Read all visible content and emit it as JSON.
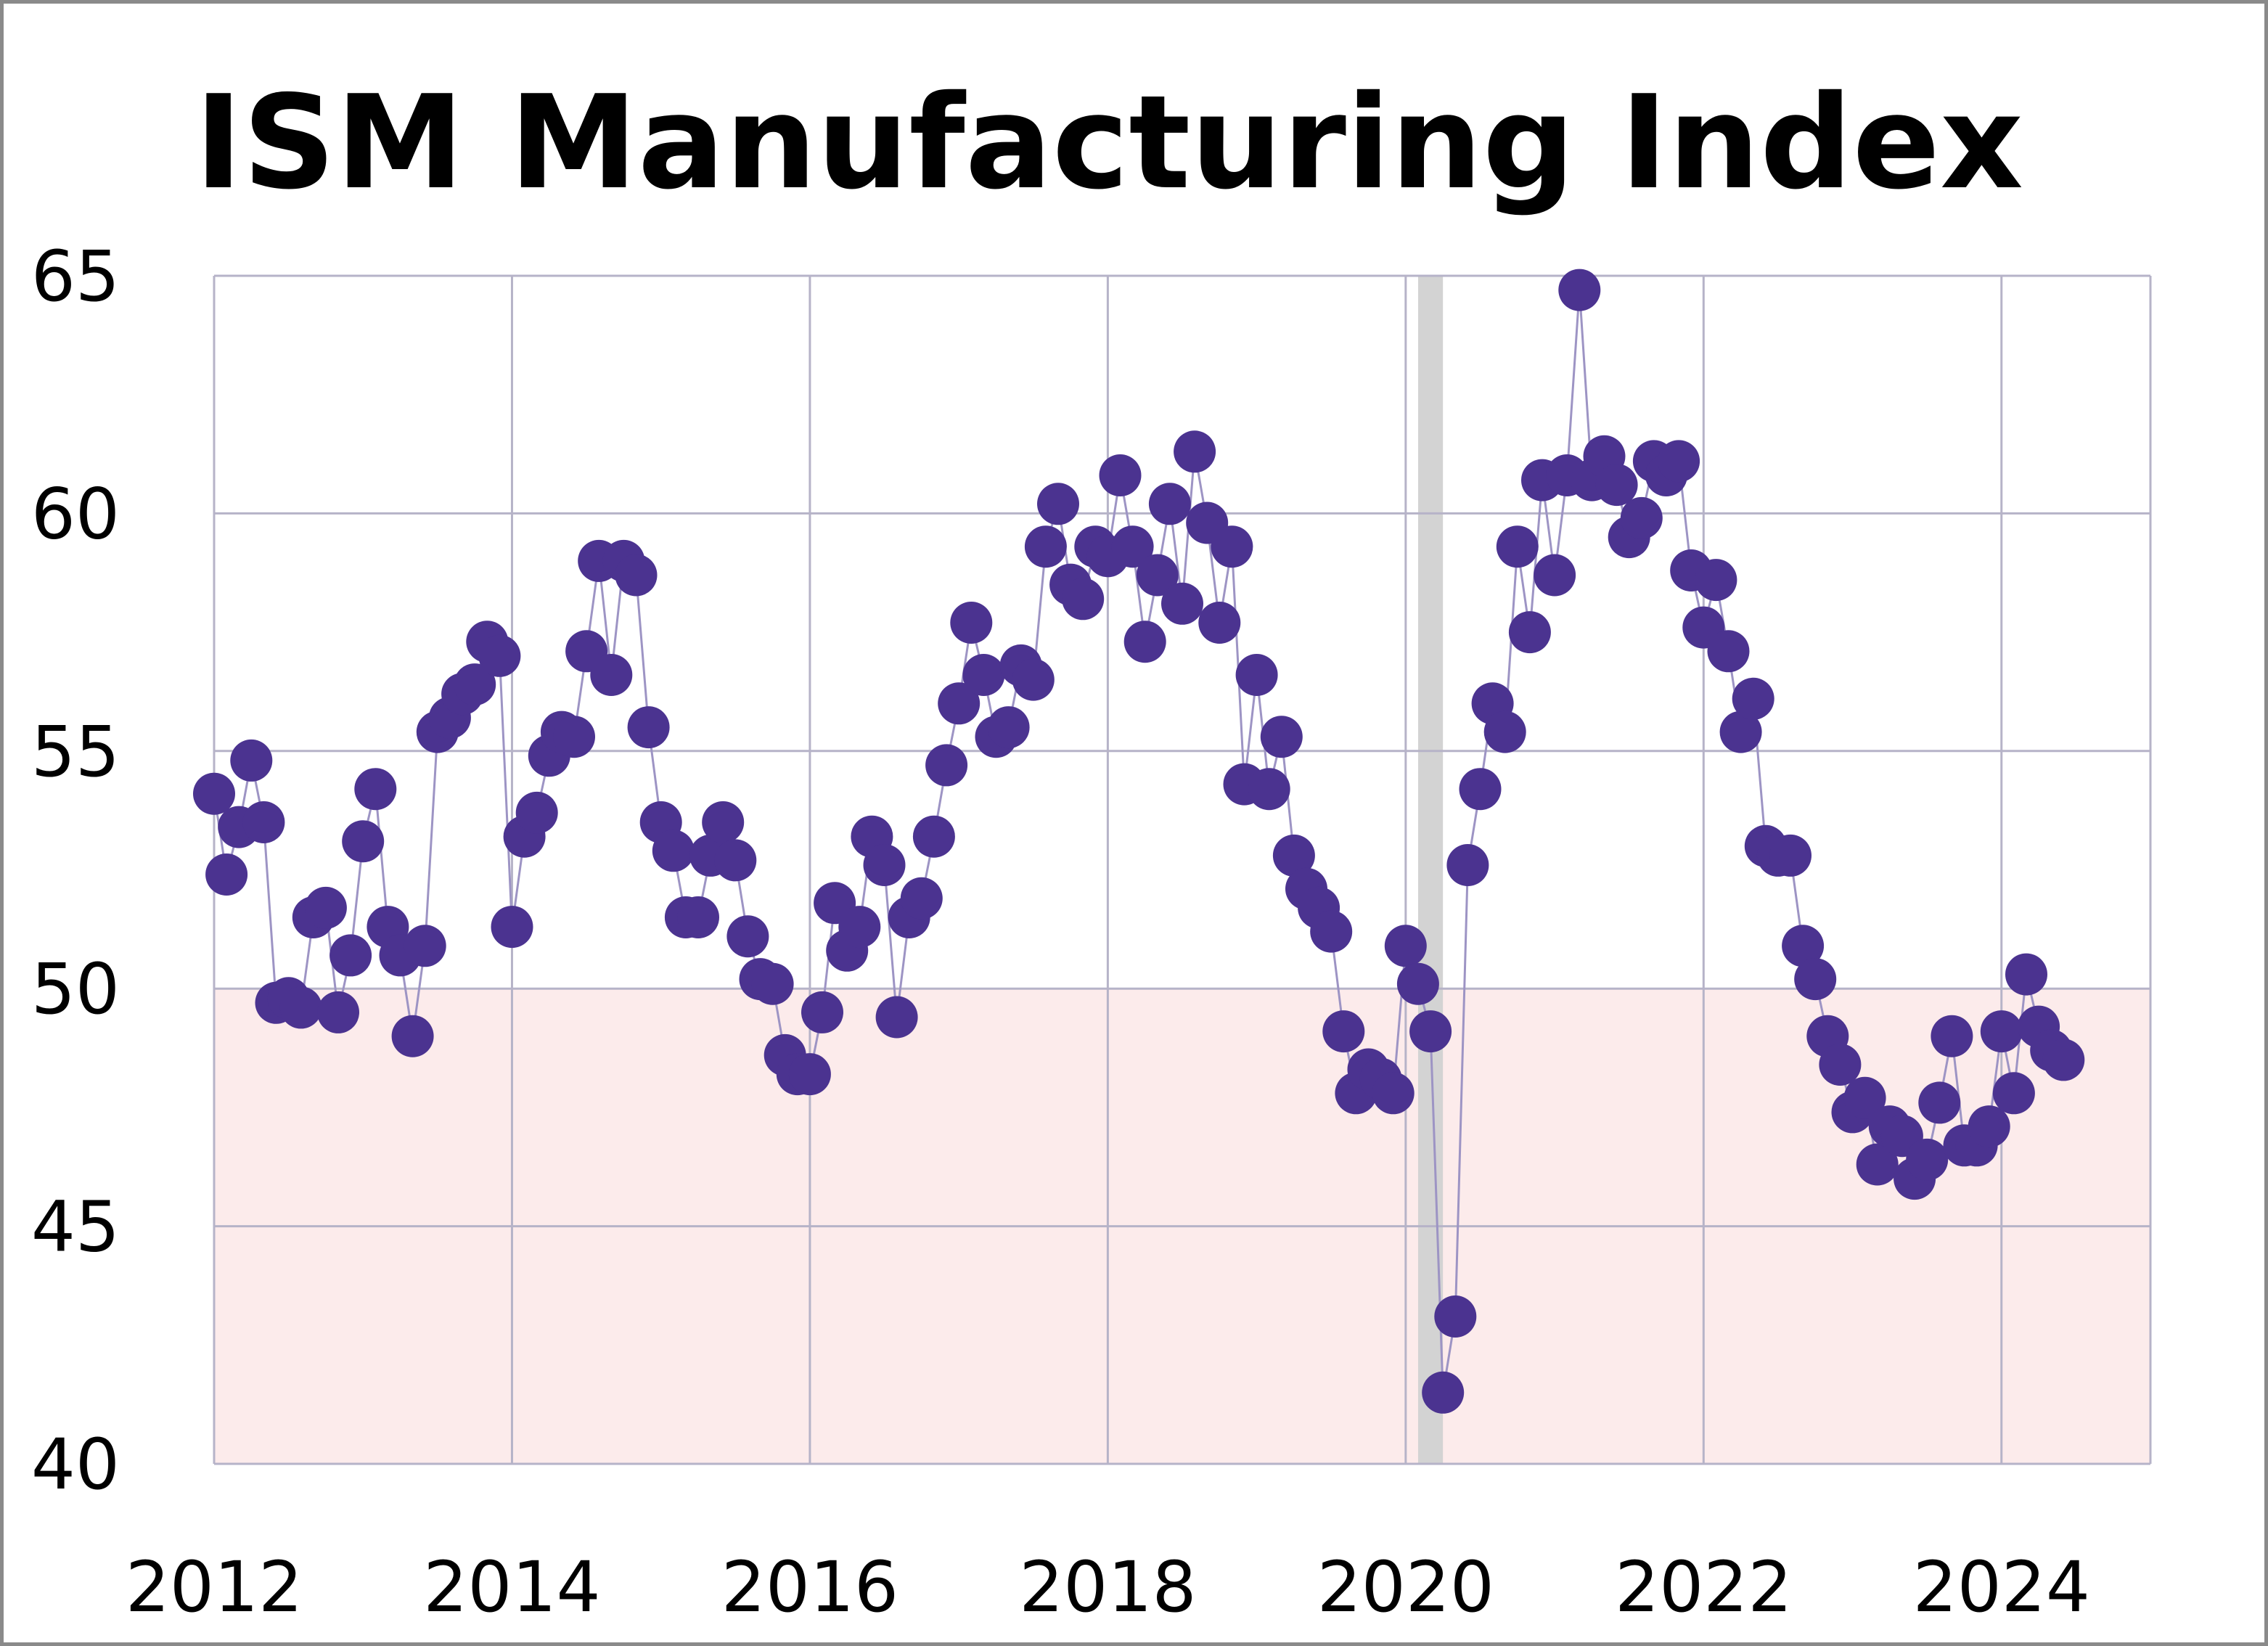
{
  "chart_data": {
    "type": "scatter",
    "title": "ISM Manufacturing Index",
    "xlabel": "",
    "ylabel": "",
    "xlim": [
      2012,
      2025
    ],
    "ylim": [
      40,
      65
    ],
    "x_ticks": [
      "2012",
      "2014",
      "2016",
      "2018",
      "2020",
      "2022",
      "2024"
    ],
    "y_ticks": [
      "40",
      "45",
      "50",
      "55",
      "60",
      "65"
    ],
    "grid": true,
    "legend": "none",
    "colors": {
      "points": "#4b3390",
      "line": "#9d94c4",
      "contraction_zone": "#fcebeb",
      "recession_band": "#d3d3d3",
      "grid": "#b6b3c8"
    },
    "shaded_regions": [
      {
        "kind": "contraction_zone",
        "y_range": [
          40,
          50
        ]
      },
      {
        "kind": "recession",
        "x_range": [
          "2020-02",
          "2020-04"
        ]
      }
    ],
    "series": [
      {
        "x": [
          "2012-01",
          "2012-02",
          "2012-03",
          "2012-04",
          "2012-05",
          "2012-06",
          "2012-07",
          "2012-08",
          "2012-09",
          "2012-10",
          "2012-11",
          "2012-12",
          "2013-01",
          "2013-02",
          "2013-03",
          "2013-04",
          "2013-05",
          "2013-06",
          "2013-07",
          "2013-08",
          "2013-09",
          "2013-10",
          "2013-11",
          "2013-12",
          "2014-01",
          "2014-02",
          "2014-03",
          "2014-04",
          "2014-05",
          "2014-06",
          "2014-07",
          "2014-08",
          "2014-09",
          "2014-10",
          "2014-11",
          "2014-12",
          "2015-01",
          "2015-02",
          "2015-03",
          "2015-04",
          "2015-05",
          "2015-06",
          "2015-07",
          "2015-08",
          "2015-09",
          "2015-10",
          "2015-11",
          "2015-12",
          "2016-01",
          "2016-02",
          "2016-03",
          "2016-04",
          "2016-05",
          "2016-06",
          "2016-07",
          "2016-08",
          "2016-09",
          "2016-10",
          "2016-11",
          "2016-12",
          "2017-01",
          "2017-02",
          "2017-03",
          "2017-04",
          "2017-05",
          "2017-06",
          "2017-07",
          "2017-08",
          "2017-09",
          "2017-10",
          "2017-11",
          "2017-12",
          "2018-01",
          "2018-02",
          "2018-03",
          "2018-04",
          "2018-05",
          "2018-06",
          "2018-07",
          "2018-08",
          "2018-09",
          "2018-10",
          "2018-11",
          "2018-12",
          "2019-01",
          "2019-02",
          "2019-03",
          "2019-04",
          "2019-05",
          "2019-06",
          "2019-07",
          "2019-08",
          "2019-09",
          "2019-10",
          "2019-11",
          "2019-12",
          "2020-01",
          "2020-02",
          "2020-03",
          "2020-04",
          "2020-05",
          "2020-06",
          "2020-07",
          "2020-08",
          "2020-09",
          "2020-10",
          "2020-11",
          "2020-12",
          "2021-01",
          "2021-02",
          "2021-03",
          "2021-04",
          "2021-05",
          "2021-06",
          "2021-07",
          "2021-08",
          "2021-09",
          "2021-10",
          "2021-11",
          "2021-12",
          "2022-01",
          "2022-02",
          "2022-03",
          "2022-04",
          "2022-05",
          "2022-06",
          "2022-07",
          "2022-08",
          "2022-09",
          "2022-10",
          "2022-11",
          "2022-12",
          "2023-01",
          "2023-02",
          "2023-03",
          "2023-04",
          "2023-05",
          "2023-06",
          "2023-07",
          "2023-08",
          "2023-09",
          "2023-10",
          "2023-11",
          "2023-12",
          "2024-01",
          "2024-02",
          "2024-03",
          "2024-04",
          "2024-05",
          "2024-06"
        ],
        "values": [
          54.1,
          52.4,
          53.4,
          54.8,
          53.5,
          49.7,
          49.8,
          49.6,
          51.5,
          51.7,
          49.5,
          50.7,
          53.1,
          54.2,
          51.3,
          50.7,
          49.0,
          50.9,
          55.4,
          55.7,
          56.2,
          56.4,
          57.3,
          57.0,
          51.3,
          53.2,
          53.7,
          54.9,
          55.4,
          55.3,
          57.1,
          59.0,
          56.6,
          59.0,
          58.7,
          55.5,
          53.5,
          52.9,
          51.5,
          51.5,
          52.8,
          53.5,
          52.7,
          51.1,
          50.2,
          50.1,
          48.6,
          48.2,
          48.2,
          49.5,
          51.8,
          50.8,
          51.3,
          53.2,
          52.6,
          49.4,
          51.5,
          51.9,
          53.2,
          54.7,
          56.0,
          57.7,
          56.6,
          55.3,
          55.5,
          56.8,
          56.5,
          59.3,
          60.2,
          58.5,
          58.2,
          59.3,
          59.1,
          60.8,
          59.3,
          57.3,
          58.7,
          60.2,
          58.1,
          61.3,
          59.8,
          57.7,
          59.3,
          54.3,
          56.6,
          54.2,
          55.3,
          52.8,
          52.1,
          51.7,
          51.2,
          49.1,
          47.8,
          48.3,
          48.1,
          47.8,
          50.9,
          50.1,
          49.1,
          41.5,
          43.1,
          52.6,
          54.2,
          56.0,
          55.4,
          59.3,
          57.5,
          60.7,
          58.7,
          60.8,
          64.7,
          60.7,
          61.2,
          60.6,
          59.5,
          59.9,
          61.1,
          60.8,
          61.1,
          58.8,
          57.6,
          58.6,
          57.1,
          55.4,
          56.1,
          53.0,
          52.8,
          52.8,
          50.9,
          50.2,
          49.0,
          48.4,
          47.4,
          47.7,
          46.3,
          47.1,
          46.9,
          46.0,
          46.4,
          47.6,
          49.0,
          46.7,
          46.7,
          47.1,
          49.1,
          47.8,
          50.3,
          49.2,
          48.7,
          48.5
        ]
      }
    ]
  }
}
